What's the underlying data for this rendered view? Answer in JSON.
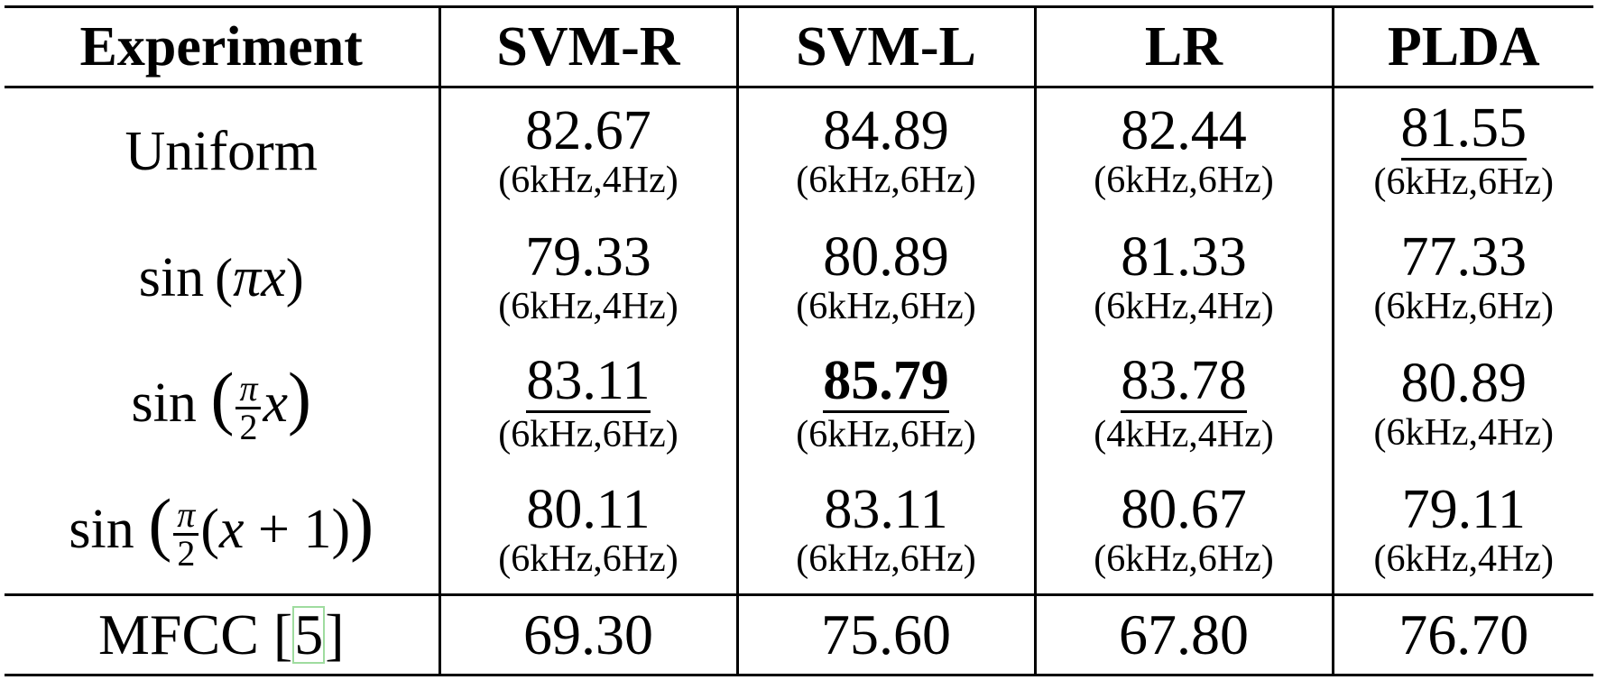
{
  "headers": [
    "Experiment",
    "SVM-R",
    "SVM-L",
    "LR",
    "PLDA"
  ],
  "rows": [
    {
      "label": "Uniform",
      "cells": [
        {
          "value": "82.67",
          "config": "(6kHz,4Hz)",
          "underline": false,
          "bold": false
        },
        {
          "value": "84.89",
          "config": "(6kHz,6Hz)",
          "underline": false,
          "bold": false
        },
        {
          "value": "82.44",
          "config": "(6kHz,6Hz)",
          "underline": false,
          "bold": false
        },
        {
          "value": "81.55",
          "config": "(6kHz,6Hz)",
          "underline": true,
          "bold": false
        }
      ]
    },
    {
      "label": "sin (πx)",
      "cells": [
        {
          "value": "79.33",
          "config": "(6kHz,4Hz)",
          "underline": false,
          "bold": false
        },
        {
          "value": "80.89",
          "config": "(6kHz,6Hz)",
          "underline": false,
          "bold": false
        },
        {
          "value": "81.33",
          "config": "(6kHz,4Hz)",
          "underline": false,
          "bold": false
        },
        {
          "value": "77.33",
          "config": "(6kHz,6Hz)",
          "underline": false,
          "bold": false
        }
      ]
    },
    {
      "label": "sin (π/2 x)",
      "cells": [
        {
          "value": "83.11",
          "config": "(6kHz,6Hz)",
          "underline": true,
          "bold": false
        },
        {
          "value": "85.79",
          "config": "(6kHz,6Hz)",
          "underline": true,
          "bold": true
        },
        {
          "value": "83.78",
          "config": "(4kHz,4Hz)",
          "underline": true,
          "bold": false
        },
        {
          "value": "80.89",
          "config": "(6kHz,4Hz)",
          "underline": false,
          "bold": false
        }
      ]
    },
    {
      "label": "sin (π/2 (x + 1))",
      "cells": [
        {
          "value": "80.11",
          "config": "(6kHz,6Hz)",
          "underline": false,
          "bold": false
        },
        {
          "value": "83.11",
          "config": "(6kHz,6Hz)",
          "underline": false,
          "bold": false
        },
        {
          "value": "80.67",
          "config": "(6kHz,6Hz)",
          "underline": false,
          "bold": false
        },
        {
          "value": "79.11",
          "config": "(6kHz,4Hz)",
          "underline": false,
          "bold": false
        }
      ]
    }
  ],
  "baseline": {
    "label": "MFCC",
    "citation": "5",
    "values": [
      "69.30",
      "75.60",
      "67.80",
      "76.70"
    ]
  }
}
